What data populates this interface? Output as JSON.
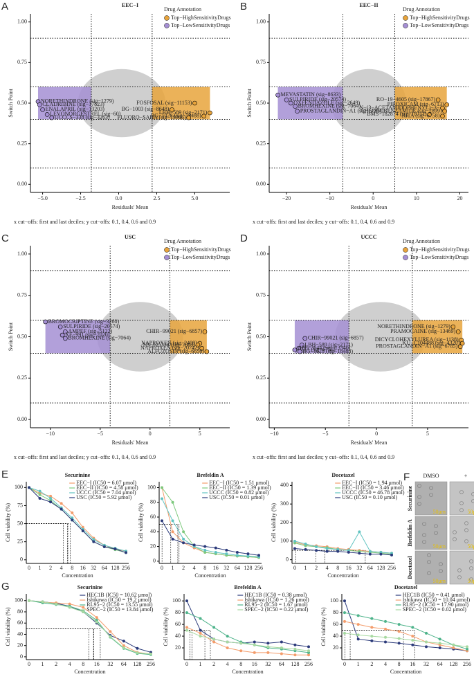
{
  "chart_data": [
    {
      "type": "scatter",
      "panel": "A",
      "title": "EEC−I",
      "xlabel": "Residuals' Mean",
      "ylabel": "Switch Point",
      "legend_title": "Drug Annotation",
      "caption": "x cut−offs: first and last deciles; y cut−offs: 0.1, 0.4, 0.6 and 0.9",
      "xlim": [
        -5.8,
        7.3
      ],
      "ylim": [
        -0.05,
        1.05
      ],
      "xticks": [
        {
          "value": -5,
          "label": "−5.0"
        },
        {
          "value": -2.5,
          "label": "−2.5"
        },
        {
          "value": 0,
          "label": "0.0"
        },
        {
          "value": 2.5,
          "label": "2.5"
        },
        {
          "value": 5,
          "label": "5.0"
        }
      ],
      "yticks": [
        {
          "value": 0,
          "label": "0.00"
        },
        {
          "value": 0.25,
          "label": "0.25"
        },
        {
          "value": 0.5,
          "label": "0.50"
        },
        {
          "value": 0.75,
          "label": "0.75"
        },
        {
          "value": 1,
          "label": "1.00"
        }
      ],
      "xcutoffs": [
        -1.8,
        2.2
      ],
      "ycutoffs": [
        0.1,
        0.4,
        0.6,
        0.9
      ],
      "series": [
        {
          "name": "Top−HighSensitivityDrugs",
          "color": "#e8a43c",
          "x": [
            5.0,
            6.0,
            5.6,
            4.6,
            3.5
          ],
          "values": [
            0.5,
            0.44,
            0.42,
            0.41,
            0.46
          ],
          "labels": [
            "FOSFOSAL (sig−11153)",
            "LBH−589 (sig−2171)",
            "BG−1028 (sig−18488)",
            "FLUORO−SAHA (sig−19966)",
            "BG−1003 (sig−8648)"
          ]
        },
        {
          "name": "Top−LowSensitivityDrugs",
          "color": "#a58fd4",
          "x": [
            -5.3,
            -5.2,
            -5.0,
            -4.7,
            -4.4
          ],
          "values": [
            0.51,
            0.49,
            0.46,
            0.43,
            0.41
          ],
          "labels": [
            "NORETHINDRONE (sig−1279)",
            "CLADRIBINE (sig−17823)",
            "ENALAPRIL (sig−13203)",
            "LEVONORGESTREL (sig−60)",
            "UCCCS−338 (sig−3263)"
          ]
        }
      ]
    },
    {
      "type": "scatter",
      "panel": "B",
      "title": "EEC−II",
      "xlabel": "Residuals' Mean",
      "ylabel": "Switch Point",
      "legend_title": "Drug Annotation",
      "caption": "x cut−offs: first and last deciles; y cut−offs: 0.1, 0.4, 0.6 and 0.9",
      "xlim": [
        -24,
        22
      ],
      "ylim": [
        -0.05,
        1.05
      ],
      "xticks": [
        {
          "value": -20,
          "label": "−20"
        },
        {
          "value": -10,
          "label": "−10"
        },
        0,
        10,
        20
      ],
      "yticks": [
        {
          "value": 0,
          "label": "0.00"
        },
        {
          "value": 0.25,
          "label": "0.25"
        },
        {
          "value": 0.5,
          "label": "0.50"
        },
        {
          "value": 0.75,
          "label": "0.75"
        },
        {
          "value": 1,
          "label": "1.00"
        }
      ],
      "xcutoffs": [
        -7,
        5
      ],
      "ycutoffs": [
        0.1,
        0.4,
        0.6,
        0.9
      ],
      "series": [
        {
          "name": "Top−HighSensitivityDrugs",
          "color": "#e8a43c",
          "x": [
            15,
            17,
            16,
            16.5,
            13,
            16
          ],
          "values": [
            0.52,
            0.49,
            0.47,
            0.45,
            0.43,
            0.42
          ],
          "labels": [
            "RO−19−4605 (sig−17867)",
            "PIROXICAM (sig−6713)",
            "N−(3−ACETAMIDOPHENYL)−3−",
            "CHLOROBENZAMIDE (sig−2899)",
            "BMS−182874 (sig−18711)",
            "RITA (sig−6758)"
          ]
        },
        {
          "name": "Top−LowSensitivityDrugs",
          "color": "#a58fd4",
          "x": [
            -22,
            -20,
            -19,
            -18,
            -17.5
          ],
          "values": [
            0.55,
            0.52,
            0.5,
            0.48,
            0.45
          ],
          "labels": [
            "MEVASTATIN (sig−8633)",
            "SULPIRIDE (sig−20574)",
            "OXFENDAZOLE (sig−2649)",
            "BROMHEXINE (sig−7064)",
            "PROSTAGLANDIN−A1 (sig−6785)"
          ]
        }
      ]
    },
    {
      "type": "scatter",
      "panel": "C",
      "title": "USC",
      "xlabel": "Residuals' Mean",
      "ylabel": "Switch Point",
      "legend_title": "Drug Annotation",
      "caption": "x cut−offs: first and last deciles; y cut−offs: 0.1, 0.4, 0.6 and 0.9",
      "xlim": [
        -12,
        8
      ],
      "ylim": [
        -0.05,
        1.05
      ],
      "xticks": [
        {
          "value": -10,
          "label": "−10"
        },
        {
          "value": -5,
          "label": "−5"
        },
        0,
        5
      ],
      "yticks": [
        {
          "value": 0,
          "label": "0.00"
        },
        {
          "value": 0.25,
          "label": "0.25"
        },
        {
          "value": 0.5,
          "label": "0.50"
        },
        {
          "value": 0.75,
          "label": "0.75"
        },
        {
          "value": 1,
          "label": "1.00"
        }
      ],
      "xcutoffs": [
        -4,
        2
      ],
      "ycutoffs": [
        0.1,
        0.4,
        0.6,
        0.9
      ],
      "series": [
        {
          "name": "Top−HighSensitivityDrugs",
          "color": "#e8a43c",
          "x": [
            5.5,
            5.0,
            4.8,
            5.2,
            5.7
          ],
          "values": [
            0.53,
            0.46,
            0.45,
            0.43,
            0.41
          ],
          "labels": [
            "CHIR−99021 (sig−6857)",
            "NAPROXEN (sig−2409)",
            "SB−525334 (sig−7003)",
            "NAPROXEN (sig−20742)",
            "ALFUZOSIN (sig−6656)"
          ]
        },
        {
          "name": "Top−LowSensitivityDrugs",
          "color": "#a58fd4",
          "x": [
            -10.5,
            -9,
            -8.5,
            -8.8,
            -8.5
          ],
          "values": [
            0.59,
            0.56,
            0.53,
            0.51,
            0.49
          ],
          "labels": [
            "BROMOCRIPTINE (sig−3260)",
            "SULPIRIDE (sig−20574)",
            "AMPEF (sig−5122)",
            "XE−991 (sig−7020)",
            "BROMHEXINE (sig−7064)"
          ]
        }
      ]
    },
    {
      "type": "scatter",
      "panel": "D",
      "title": "UCCC",
      "xlabel": "Residuals' Mean",
      "ylabel": "Switch Point",
      "legend_title": "Drug Annotation",
      "caption": "x cut−offs: first and last deciles; y cut−offs: 0.1, 0.4, 0.6 and 0.9",
      "xlim": [
        -10.5,
        9
      ],
      "ylim": [
        -0.05,
        1.05
      ],
      "xticks": [
        {
          "value": -10,
          "label": "−10"
        },
        {
          "value": -5,
          "label": "−5"
        },
        0,
        5
      ],
      "yticks": [
        {
          "value": 0,
          "label": "0.00"
        },
        {
          "value": 0.25,
          "label": "0.25"
        },
        {
          "value": 0.5,
          "label": "0.50"
        },
        {
          "value": 0.75,
          "label": "0.75"
        },
        {
          "value": 1,
          "label": "1.00"
        }
      ],
      "xcutoffs": [
        -2.7,
        3.5
      ],
      "ycutoffs": [
        0.1,
        0.4,
        0.6,
        0.9
      ],
      "series": [
        {
          "name": "Top−HighSensitivityDrugs",
          "color": "#e8a43c",
          "x": [
            7.5,
            8.0,
            8.3,
            8.4,
            8.2
          ],
          "values": [
            0.56,
            0.53,
            0.48,
            0.46,
            0.44
          ],
          "labels": [
            "NORETHINDRONE (sig−1279)",
            "PRAMOCAINE (sig−13469)",
            "DICYCLOHEXYLUREA (sig−1138)",
            "KU−C104488 (sig−4320)",
            "PROSTAGLANDIN−A1 (sig−6785)"
          ]
        },
        {
          "name": "Top−LowSensitivityDrugs",
          "color": "#a58fd4",
          "x": [
            -7,
            -7.3,
            -7.6,
            -8,
            -7.5
          ],
          "values": [
            0.49,
            0.45,
            0.43,
            0.42,
            0.41
          ],
          "labels": [
            "CHIR−99021 (sig−6857)",
            "LBH−589 (sig−2171)",
            "PF−3644 (sig−13340)",
            "RITA (sig−6758)",
            "BG−1028 (sig−18488)"
          ]
        }
      ]
    },
    {
      "type": "line",
      "panel": "E",
      "title": "Securinine",
      "xlabel": "Concentration",
      "ylabel": "Cell viability (%)",
      "categories": [
        "0",
        "1",
        "2",
        "4",
        "8",
        "16",
        "32",
        "64",
        "128",
        "256"
      ],
      "ylim": [
        -5,
        108
      ],
      "yticks": [
        0,
        25,
        50,
        75,
        100
      ],
      "series": [
        {
          "name": "EEC−I (IC50 = 6.07 μmol)",
          "ic50": 6.07,
          "color": "#f39c6b",
          "values": [
            100,
            92,
            88,
            78,
            65,
            45,
            30,
            20,
            15,
            12
          ]
        },
        {
          "name": "EEC−II (IC50 = 4.58 μmol)",
          "ic50": 4.58,
          "color": "#7dc97d",
          "values": [
            100,
            90,
            82,
            70,
            55,
            40,
            25,
            18,
            14,
            10
          ]
        },
        {
          "name": "UCCC (IC50 = 7.04 μmol)",
          "ic50": 7.04,
          "color": "#5fc3c0",
          "values": [
            100,
            95,
            85,
            72,
            58,
            42,
            28,
            20,
            16,
            12
          ]
        },
        {
          "name": "USC (IC50 = 5.92 μmol)",
          "ic50": 5.92,
          "color": "#2b3a7a",
          "values": [
            100,
            85,
            80,
            70,
            55,
            40,
            25,
            18,
            15,
            10
          ]
        }
      ]
    },
    {
      "type": "line",
      "title": "Brefeldin A",
      "xlabel": "Concentration",
      "ylabel": "Cell viability (%)",
      "categories": [
        "0",
        "1",
        "2",
        "4",
        "8",
        "16",
        "32",
        "64",
        "128",
        "256"
      ],
      "ylim": [
        -3,
        108
      ],
      "yticks": [
        0,
        20,
        40,
        60,
        80,
        100
      ],
      "series": [
        {
          "name": "EEC−I (IC50 = 1.51 μmol)",
          "ic50": 1.51,
          "color": "#f39c6b",
          "values": [
            100,
            40,
            25,
            18,
            12,
            10,
            8,
            7,
            6,
            5
          ]
        },
        {
          "name": "EEC−II (IC50 = 1.39 μmol)",
          "ic50": 1.39,
          "color": "#7dc97d",
          "values": [
            100,
            80,
            40,
            20,
            12,
            10,
            8,
            7,
            6,
            5
          ]
        },
        {
          "name": "UCCC (IC50 = 0.82 μmol)",
          "ic50": 0.82,
          "color": "#5fc3c0",
          "values": [
            85,
            55,
            30,
            20,
            15,
            12,
            10,
            8,
            7,
            6
          ]
        },
        {
          "name": "USC (IC50 = 0.01 μmol)",
          "ic50": 0.01,
          "color": "#2b3a7a",
          "values": [
            55,
            30,
            25,
            22,
            20,
            18,
            15,
            12,
            10,
            8
          ]
        }
      ]
    },
    {
      "type": "line",
      "title": "Docetaxel",
      "xlabel": "Concentration",
      "ylabel": "Cell viability (%)",
      "categories": [
        "0",
        "1",
        "2",
        "4",
        "8",
        "16",
        "32",
        "64",
        "128",
        "256"
      ],
      "ylim": [
        -20,
        420
      ],
      "yticks": [
        0,
        100,
        200,
        300,
        400
      ],
      "series": [
        {
          "name": "EEC−I (IC50 = 1.94 μmol)",
          "ic50": 1.94,
          "color": "#f39c6b",
          "values": [
            95,
            80,
            75,
            70,
            60,
            55,
            50,
            45,
            40,
            35
          ]
        },
        {
          "name": "EEC−II (IC50 = 3.46 μmol)",
          "ic50": 3.46,
          "color": "#7dc97d",
          "values": [
            90,
            75,
            70,
            65,
            55,
            50,
            45,
            40,
            35,
            30
          ]
        },
        {
          "name": "UCCC (IC50 = 46.78 μmol)",
          "ic50": 46.78,
          "color": "#5fc3c0",
          "values": [
            100,
            85,
            70,
            60,
            55,
            50,
            150,
            45,
            40,
            35
          ]
        },
        {
          "name": "USC (IC50 = 0.10 μmol)",
          "ic50": 0.1,
          "color": "#2b3a7a",
          "values": [
            60,
            55,
            50,
            45,
            45,
            40,
            35,
            30,
            30,
            25
          ]
        }
      ]
    },
    {
      "type": "line",
      "panel": "G",
      "title": "Securinine",
      "xlabel": "Concentration",
      "ylabel": "Cell viability (%)",
      "categories": [
        "0",
        "1",
        "2",
        "4",
        "8",
        "16",
        "32",
        "64",
        "128",
        "256"
      ],
      "ylim": [
        -5,
        112
      ],
      "yticks": [
        0,
        20,
        40,
        60,
        80,
        100
      ],
      "series": [
        {
          "name": "HEC1B (IC50 = 10.62 μmol)",
          "ic50": 10.62,
          "color": "#2b3a7a",
          "values": [
            100,
            98,
            95,
            90,
            80,
            60,
            38,
            28,
            15,
            8
          ]
        },
        {
          "name": "Ishikawa (IC50 = 19.2 μmol)",
          "ic50": 19.2,
          "color": "#f39c6b",
          "values": [
            100,
            97,
            96,
            94,
            88,
            70,
            45,
            20,
            8,
            5
          ]
        },
        {
          "name": "RL95−2 (IC50 = 13.55 μmol)",
          "ic50": 13.55,
          "color": "#4db38a",
          "values": [
            100,
            96,
            93,
            90,
            82,
            65,
            35,
            15,
            6,
            4
          ]
        },
        {
          "name": "SPEC−2 (IC50 = 13.84 μmol)",
          "ic50": 13.84,
          "color": "#a6d9a0",
          "values": [
            100,
            98,
            94,
            88,
            80,
            62,
            36,
            16,
            7,
            5
          ]
        }
      ]
    },
    {
      "type": "line",
      "title": "Brefeldin A",
      "xlabel": "Concentration",
      "ylabel": "Cell viability (%)",
      "categories": [
        "0",
        "1",
        "2",
        "4",
        "8",
        "16",
        "32",
        "64",
        "128",
        "256"
      ],
      "ylim": [
        0,
        112
      ],
      "yticks": [
        20,
        40,
        60,
        80,
        100
      ],
      "series": [
        {
          "name": "HEC1B (IC50 = 0.38 μmol)",
          "ic50": 0.38,
          "color": "#2b3a7a",
          "values": [
            100,
            50,
            35,
            30,
            28,
            30,
            28,
            30,
            25,
            22
          ]
        },
        {
          "name": "Ishikawa (IC50 = 1.26 μmol)",
          "ic50": 1.26,
          "color": "#f39c6b",
          "values": [
            55,
            45,
            30,
            20,
            15,
            12,
            12,
            10,
            8,
            8
          ]
        },
        {
          "name": "RL95−2 (IC50 = 1.67 μmol)",
          "ic50": 1.67,
          "color": "#4db38a",
          "values": [
            80,
            70,
            55,
            40,
            30,
            25,
            20,
            18,
            15,
            12
          ]
        },
        {
          "name": "SPEC−2 (IC50 = 0.22 μmol)",
          "ic50": 0.22,
          "color": "#a6d9a0",
          "values": [
            50,
            40,
            35,
            30,
            28,
            25,
            22,
            20,
            18,
            15
          ]
        }
      ]
    },
    {
      "type": "line",
      "title": "Docetaxel",
      "xlabel": "Concentration",
      "ylabel": "Cell viability (%)",
      "categories": [
        "0",
        "1",
        "2",
        "4",
        "8",
        "16",
        "32",
        "64",
        "128",
        "256"
      ],
      "ylim": [
        0,
        112
      ],
      "yticks": [
        20,
        40,
        60,
        80,
        100
      ],
      "series": [
        {
          "name": "HEC1B (IC50 = 0.41 μmol)",
          "ic50": 0.41,
          "color": "#2b3a7a",
          "values": [
            100,
            35,
            32,
            30,
            28,
            25,
            22,
            20,
            18,
            15
          ]
        },
        {
          "name": "Ishikawa (IC50 = 10.04 μmol)",
          "ic50": 10.04,
          "color": "#f39c6b",
          "values": [
            65,
            60,
            55,
            52,
            48,
            40,
            30,
            25,
            20,
            15
          ]
        },
        {
          "name": "RL95−2 (IC50 = 17.90 μmol)",
          "ic50": 17.9,
          "color": "#4db38a",
          "values": [
            80,
            75,
            70,
            65,
            60,
            55,
            45,
            35,
            25,
            18
          ]
        },
        {
          "name": "SPEC−2 (IC50 = 0.02 μmol)",
          "ic50": 0.02,
          "color": "#a6d9a0",
          "values": [
            45,
            42,
            40,
            38,
            36,
            33,
            30,
            28,
            25,
            22
          ]
        }
      ]
    }
  ],
  "images": {
    "panel": "F",
    "columns": [
      "DMSO",
      "+"
    ],
    "rows": [
      "Securinine",
      "Brefeldin A",
      "Docetaxel"
    ],
    "scale_bar": "50μm"
  }
}
